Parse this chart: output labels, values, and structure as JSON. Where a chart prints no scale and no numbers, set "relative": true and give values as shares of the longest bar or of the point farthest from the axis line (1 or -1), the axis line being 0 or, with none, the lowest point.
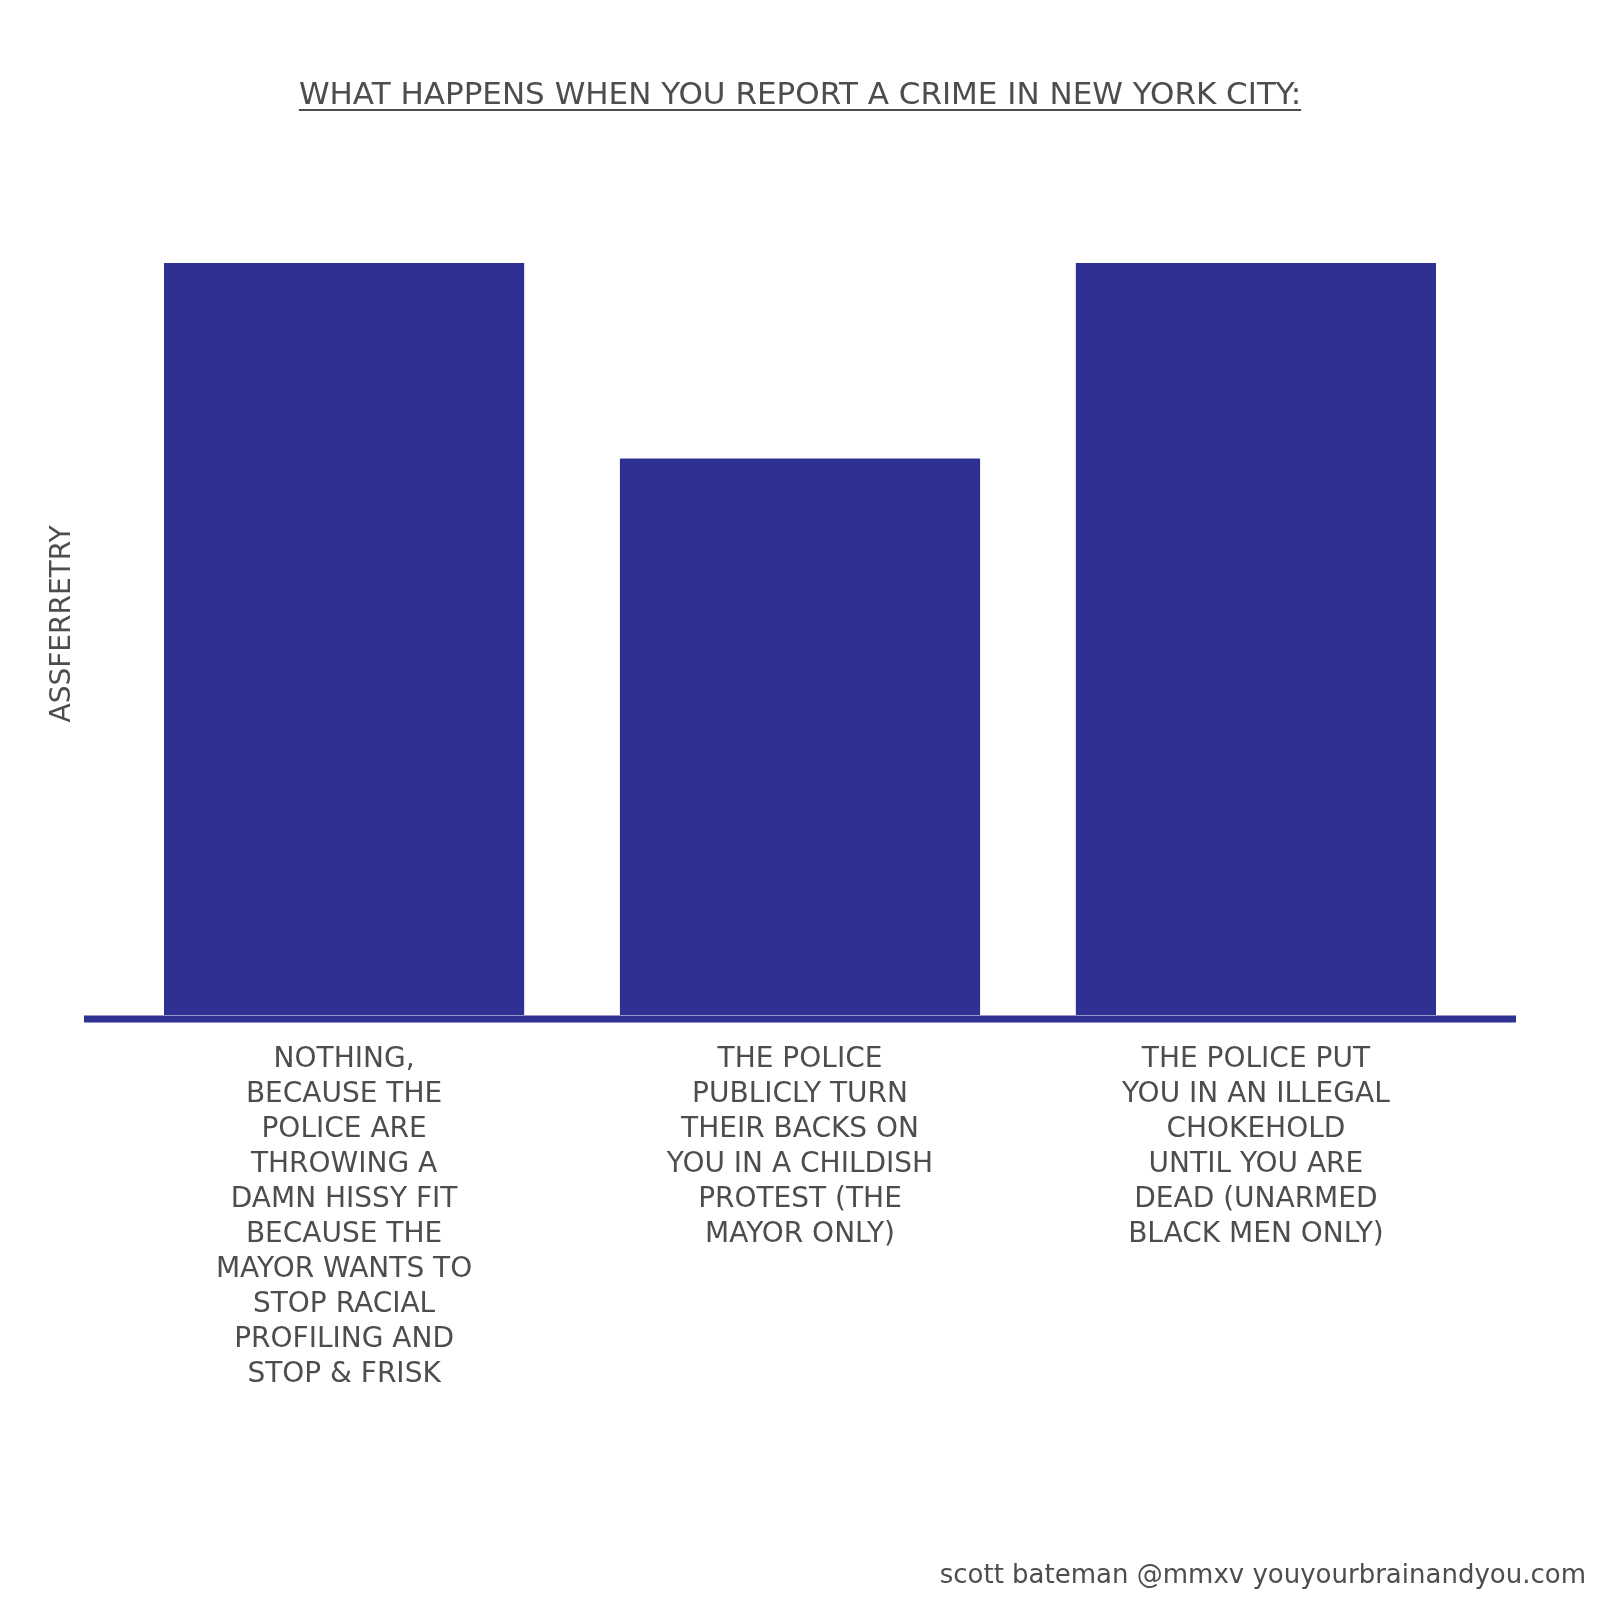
{
  "chart_data": {
    "type": "bar",
    "title": "WHAT HAPPENS WHEN YOU REPORT A CRIME IN NEW YORK CITY:",
    "ylabel": "ASSFERRETRY",
    "categories": [
      "NOTHING, BECAUSE THE POLICE ARE THROWING A DAMN HISSY FIT BECAUSE THE MAYOR WANTS TO STOP RACIAL PROFILING AND STOP & FRISK",
      "THE POLICE PUBLICLY TURN THEIR BACKS ON YOU IN A CHILDISH PROTEST (THE MAYOR ONLY)",
      "THE POLICE PUT YOU IN AN ILLEGAL CHOKEHOLD UNTIL YOU ARE DEAD (UNARMED BLACK MEN ONLY)"
    ],
    "values": [
      1,
      0.74,
      1
    ],
    "color": "#2e3192",
    "relative": true,
    "annotations": [
      "scott bateman @mmxv youyourbrainandyou.com"
    ]
  }
}
